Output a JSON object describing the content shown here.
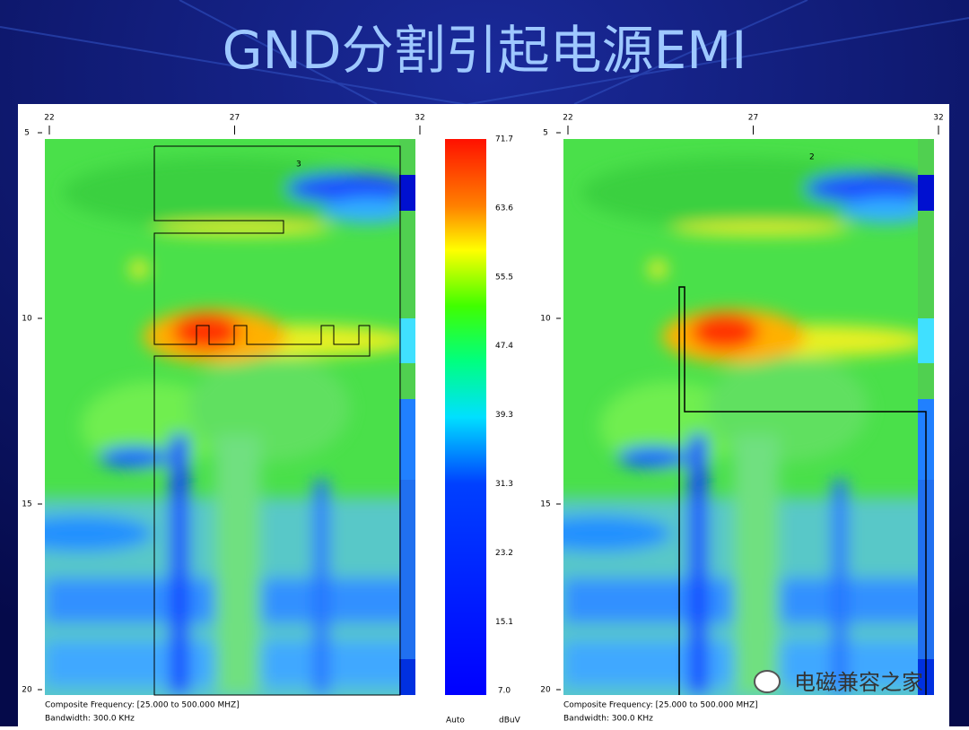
{
  "title": "GND分割引起电源EMI",
  "panels": [
    {
      "x_ticks": [
        "22",
        "27",
        "32"
      ],
      "y_ticks": [
        "5",
        "10",
        "15",
        "20"
      ],
      "marker": "3",
      "footer": [
        "Composite Frequency: [25.000 to 500.000 MHZ]",
        "Bandwidth: 300.0 KHz"
      ]
    },
    {
      "x_ticks": [
        "22",
        "27",
        "32"
      ],
      "y_ticks": [
        "5",
        "10",
        "15",
        "20"
      ],
      "marker": "2",
      "footer": [
        "Composite Frequency: [25.000 to 500.000 MHZ]",
        "Bandwidth: 300.0 KHz"
      ]
    }
  ],
  "colorbar": {
    "labels": [
      "71.7",
      "63.6",
      "55.5",
      "47.4",
      "39.3",
      "31.3",
      "23.2",
      "15.1",
      "7.0"
    ],
    "auto": "Auto",
    "unit": "dBuV"
  },
  "watermark": "电磁兼容之家"
}
